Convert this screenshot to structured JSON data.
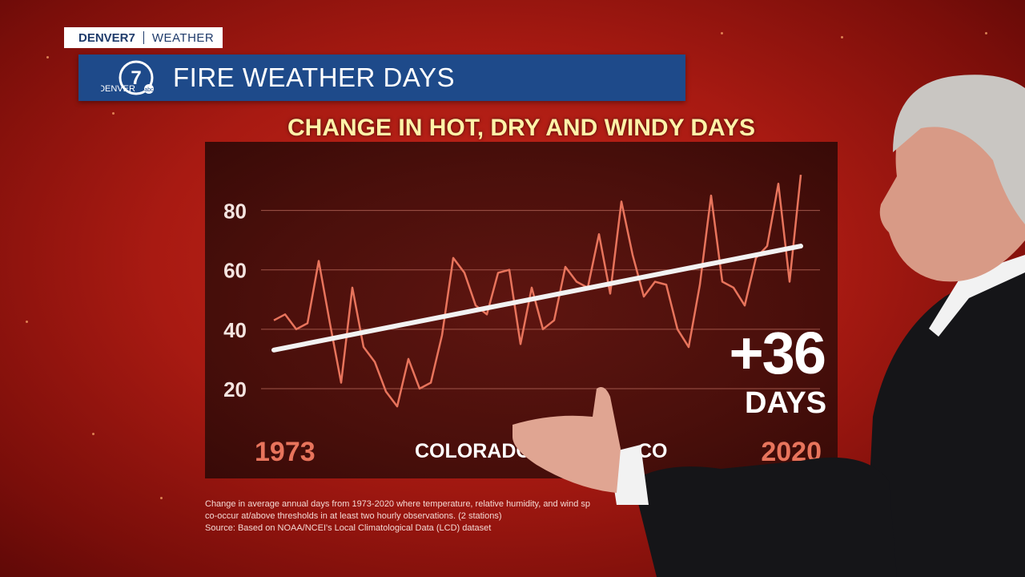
{
  "brand": {
    "station": "DENVER7",
    "section": "WEATHER",
    "logo_text": "DENVER",
    "logo_number": "7",
    "logo_network": "abc"
  },
  "title": "FIRE WEATHER DAYS",
  "chart_data": {
    "type": "line",
    "title": "CHANGE IN HOT, DRY AND WINDY DAYS",
    "xlabel": "",
    "ylabel": "",
    "x_start_label": "1973",
    "x_end_label": "2020",
    "bottom_label": "COLORADO DR",
    "bottom_label_tail": "CO",
    "yticks": [
      20,
      40,
      60,
      80
    ],
    "ylim": [
      10,
      95
    ],
    "xlim": [
      1973,
      2020
    ],
    "grid": true,
    "series": [
      {
        "x": [
          1973,
          1974,
          1975,
          1976,
          1977,
          1978,
          1979,
          1980,
          1981,
          1982,
          1983,
          1984,
          1985,
          1986,
          1987,
          1988,
          1989,
          1990,
          1991,
          1992,
          1993,
          1994,
          1995,
          1996,
          1997,
          1998,
          1999,
          2000,
          2001,
          2002,
          2003,
          2004,
          2005,
          2006,
          2007,
          2008,
          2009,
          2010,
          2011,
          2012,
          2013,
          2014,
          2015,
          2016,
          2017,
          2018,
          2019,
          2020
        ],
        "values": [
          43,
          45,
          40,
          42,
          63,
          42,
          22,
          54,
          34,
          29,
          19,
          14,
          30,
          20,
          22,
          38,
          64,
          59,
          48,
          45,
          59,
          60,
          35,
          54,
          40,
          43,
          61,
          56,
          54,
          72,
          52,
          83,
          65,
          51,
          56,
          55,
          40,
          34,
          55,
          85,
          56,
          54,
          48,
          64,
          68,
          89,
          56,
          92
        ],
        "color": "#e8745c"
      }
    ],
    "trend": {
      "x": [
        1973,
        2020
      ],
      "values": [
        33,
        68
      ],
      "color": "#f2f2f2"
    },
    "annotation": {
      "value": "+36",
      "unit": "DAYS"
    }
  },
  "footnote": {
    "line1": "Change in average annual days from 1973-2020 where temperature, relative humidity, and wind sp",
    "line2": "co-occur at/above thresholds in at least two hourly observations.  (2 stations)",
    "line3": "Source: Based on NOAA/NCEI's Local Climatological Data (LCD) dataset"
  }
}
